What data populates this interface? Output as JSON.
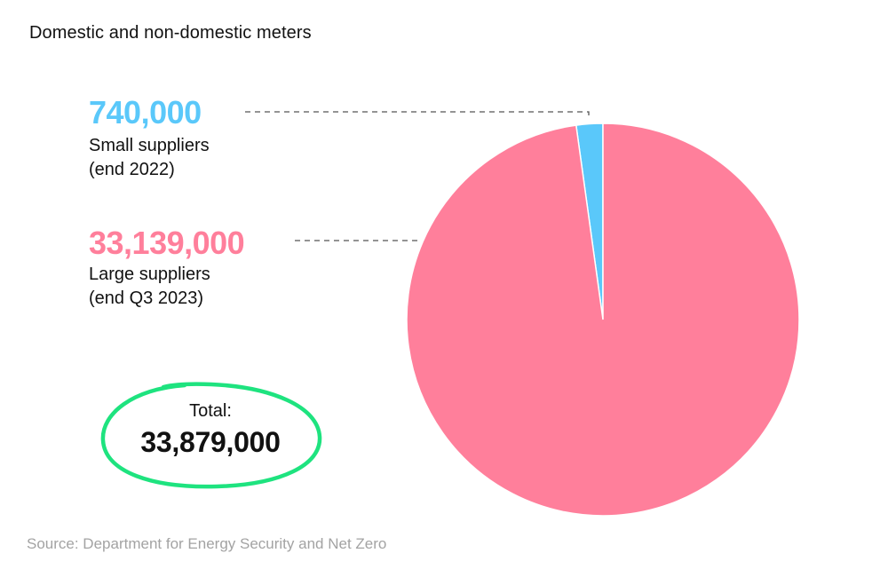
{
  "chart_data": {
    "type": "pie",
    "title": "Domestic and non-domestic meters",
    "slices": [
      {
        "value": 740000,
        "value_label": "740,000",
        "label_lines": [
          "Small suppliers",
          "(end 2022)"
        ],
        "color": "#5ac8fa"
      },
      {
        "value": 33139000,
        "value_label": "33,139,000",
        "label_lines": [
          "Large suppliers",
          "(end Q3 2023)"
        ],
        "color": "#ff7f9b"
      }
    ],
    "total": {
      "label": "Total:",
      "value": 33879000,
      "value_label": "33,879,000",
      "circle_color": "#1ee37f"
    },
    "leader_line_color": "#555555",
    "source": "Source: Department for Energy Security and Net Zero"
  }
}
